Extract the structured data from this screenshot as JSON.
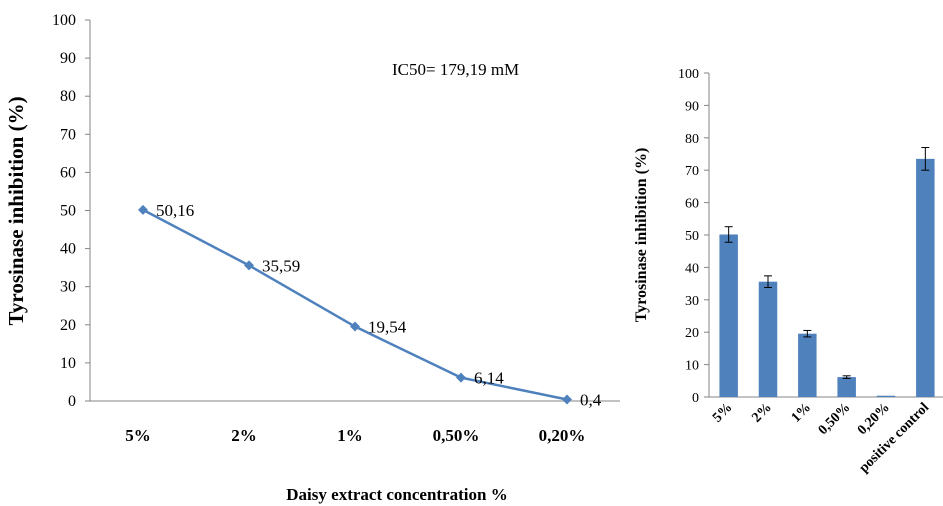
{
  "chart_data": [
    {
      "type": "line",
      "categories": [
        "5%",
        "2%",
        "1%",
        "0,50%",
        "0,20%"
      ],
      "series": [
        {
          "values": [
            50.16,
            35.59,
            19.54,
            6.14,
            0.4
          ],
          "labels": [
            "50,16",
            "35,59",
            "19,54",
            "6,14",
            "0,4"
          ],
          "color": "#4F81BD"
        }
      ],
      "ylabel": "Tyrosinase inhibition  (%)",
      "xlabel": "Daisy extract concentration %",
      "ylim": [
        0,
        100
      ],
      "yticks": [
        "0",
        "10",
        "20",
        "30",
        "40",
        "50",
        "60",
        "70",
        "80",
        "90",
        "100"
      ],
      "annotation": "IC50= 179,19 mM",
      "grid": false
    },
    {
      "type": "bar",
      "categories": [
        "5%",
        "2%",
        "1%",
        "0,50%",
        "0,20%",
        "positive control"
      ],
      "values": [
        50.16,
        35.59,
        19.54,
        6.14,
        0.4,
        73.5
      ],
      "errors": [
        2.4,
        1.8,
        1.0,
        0.4,
        0.0,
        3.5
      ],
      "color": "#4F81BD",
      "ylabel": "Tyrosinase inhibition (%)",
      "ylim": [
        0,
        100
      ],
      "yticks": [
        "0",
        "10",
        "20",
        "30",
        "40",
        "50",
        "60",
        "70",
        "80",
        "90",
        "100"
      ],
      "grid": false
    }
  ]
}
